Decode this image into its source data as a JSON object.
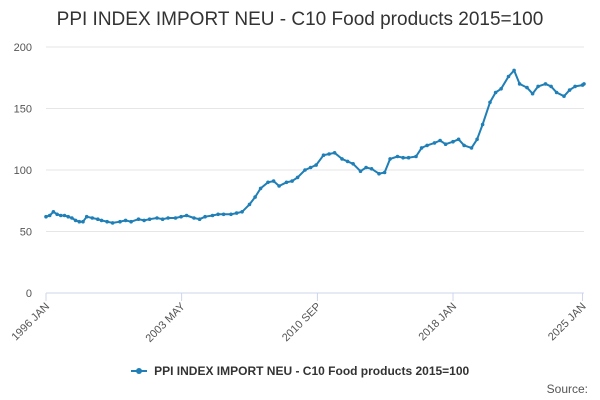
{
  "colors": {
    "series": "#1f7fb6",
    "grid": "#e6e6e6",
    "axis": "#ccd6eb",
    "text": "#333333"
  },
  "source_label": "Source:",
  "chart_data": {
    "type": "line",
    "title": "PPI INDEX IMPORT NEU - C10 Food products 2015=100",
    "xlabel": "",
    "ylabel": "",
    "ylim": [
      0,
      200
    ],
    "yticks": [
      0,
      50,
      100,
      150,
      200
    ],
    "xlim": [
      1996.0,
      2025.08
    ],
    "xticks": [
      {
        "label": "1996 JAN",
        "value": 1996.0
      },
      {
        "label": "2003 MAY",
        "value": 2003.33
      },
      {
        "label": "2010 SEP",
        "value": 2010.67
      },
      {
        "label": "2018 JAN",
        "value": 2018.0
      },
      {
        "label": "2025 JAN",
        "value": 2025.0
      }
    ],
    "grid": true,
    "legend_position": "bottom",
    "series": [
      {
        "name": "PPI INDEX IMPORT NEU - C10 Food products 2015=100",
        "x": [
          1996.0,
          1996.2,
          1996.4,
          1996.6,
          1996.8,
          1997.0,
          1997.2,
          1997.4,
          1997.6,
          1997.8,
          1998.0,
          1998.2,
          1998.5,
          1998.8,
          1999.0,
          1999.3,
          1999.6,
          2000.0,
          2000.3,
          2000.6,
          2001.0,
          2001.3,
          2001.6,
          2002.0,
          2002.3,
          2002.6,
          2003.0,
          2003.3,
          2003.6,
          2004.0,
          2004.3,
          2004.6,
          2005.0,
          2005.3,
          2005.6,
          2006.0,
          2006.3,
          2006.6,
          2007.0,
          2007.3,
          2007.6,
          2008.0,
          2008.3,
          2008.6,
          2009.0,
          2009.3,
          2009.6,
          2010.0,
          2010.3,
          2010.6,
          2011.0,
          2011.3,
          2011.6,
          2012.0,
          2012.3,
          2012.6,
          2013.0,
          2013.3,
          2013.6,
          2014.0,
          2014.3,
          2014.6,
          2015.0,
          2015.3,
          2015.6,
          2016.0,
          2016.3,
          2016.6,
          2017.0,
          2017.3,
          2017.6,
          2018.0,
          2018.3,
          2018.6,
          2019.0,
          2019.3,
          2019.6,
          2020.0,
          2020.3,
          2020.6,
          2021.0,
          2021.3,
          2021.6,
          2022.0,
          2022.3,
          2022.6,
          2023.0,
          2023.3,
          2023.6,
          2024.0,
          2024.3,
          2024.6,
          2025.0,
          2025.08
        ],
        "values": [
          62,
          63,
          66,
          64,
          63,
          63,
          62,
          61,
          59,
          58,
          58,
          62,
          61,
          60,
          59,
          58,
          57,
          58,
          59,
          58,
          60,
          59,
          60,
          61,
          60,
          61,
          61,
          62,
          63,
          61,
          60,
          62,
          63,
          64,
          64,
          64,
          65,
          66,
          72,
          78,
          85,
          90,
          91,
          87,
          90,
          91,
          94,
          100,
          102,
          104,
          112,
          113,
          114,
          109,
          107,
          105,
          99,
          102,
          101,
          97,
          98,
          109,
          111,
          110,
          110,
          111,
          118,
          120,
          122,
          124,
          121,
          123,
          125,
          120,
          118,
          125,
          137,
          155,
          163,
          166,
          176,
          181,
          170,
          167,
          162,
          168,
          170,
          168,
          163,
          160,
          165,
          168,
          169,
          170
        ]
      }
    ]
  }
}
